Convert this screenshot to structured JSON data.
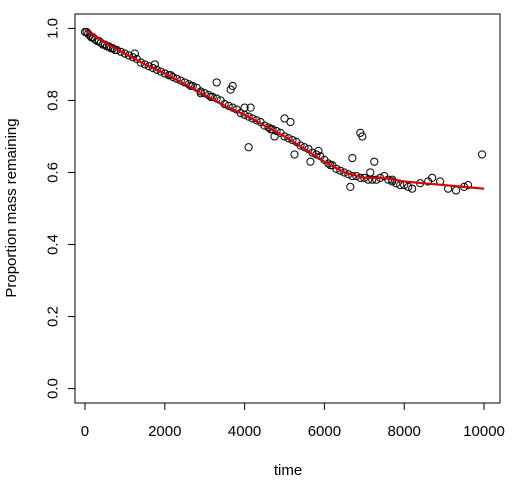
{
  "chart_data": {
    "type": "scatter",
    "title": "",
    "xlabel": "time",
    "ylabel": "Proportion mass remaining",
    "xlim": [
      -250,
      10400
    ],
    "ylim": [
      -0.04,
      1.04
    ],
    "x_ticks": [
      0,
      2000,
      4000,
      6000,
      8000,
      10000
    ],
    "y_ticks": [
      0.0,
      0.2,
      0.4,
      0.6,
      0.8,
      1.0
    ],
    "x_tick_labels": [
      "0",
      "2000",
      "4000",
      "6000",
      "8000",
      "10000"
    ],
    "y_tick_labels": [
      "0.0",
      "0.2",
      "0.4",
      "0.6",
      "0.8",
      "1.0"
    ],
    "grid": false,
    "point_color": "#000000",
    "line_color": "#dd0000",
    "series": [
      {
        "kind": "points",
        "x": [
          0,
          40,
          80,
          120,
          160,
          200,
          250,
          300,
          350,
          400,
          450,
          500,
          550,
          600,
          650,
          700,
          750,
          800,
          900,
          1000,
          1100,
          1200,
          1300,
          1400,
          1500,
          1600,
          1700,
          1800,
          1900,
          2000,
          2100,
          2200,
          2300,
          2400,
          2500,
          2600,
          2700,
          2800,
          2900,
          3000,
          3100,
          3200,
          3300,
          3400,
          3500,
          3600,
          3700,
          3800,
          3900,
          4000,
          4100,
          4200,
          4300,
          4400,
          4500,
          4600,
          4700,
          4800,
          4900,
          5000,
          5100,
          5200,
          5300,
          5400,
          5500,
          5600,
          5700,
          5800,
          5900,
          6000,
          6100,
          6200,
          6300,
          6400,
          6500,
          6600,
          6700,
          6800,
          6900,
          7000,
          7100,
          7200,
          7300,
          7400,
          7500,
          7600,
          7700,
          7800,
          7900,
          8000,
          8100,
          8200,
          8400,
          8600,
          8700,
          8900,
          9100,
          9300,
          9500,
          9600,
          9950,
          1250,
          1750,
          2150,
          2650,
          3150,
          3650,
          4150,
          4650,
          5150,
          5650,
          6150,
          6650,
          6950,
          7150,
          7700,
          3700,
          4100,
          5250,
          6900,
          5000,
          4000,
          3300,
          2900,
          6700,
          7250,
          5850,
          4750
        ],
        "y": [
          0.99,
          0.99,
          0.985,
          0.98,
          0.975,
          0.975,
          0.97,
          0.965,
          0.965,
          0.96,
          0.955,
          0.955,
          0.95,
          0.95,
          0.945,
          0.945,
          0.94,
          0.94,
          0.935,
          0.93,
          0.925,
          0.92,
          0.915,
          0.905,
          0.9,
          0.895,
          0.89,
          0.885,
          0.88,
          0.875,
          0.87,
          0.865,
          0.86,
          0.855,
          0.85,
          0.845,
          0.84,
          0.835,
          0.825,
          0.82,
          0.815,
          0.81,
          0.805,
          0.8,
          0.79,
          0.785,
          0.78,
          0.775,
          0.765,
          0.76,
          0.755,
          0.75,
          0.745,
          0.74,
          0.73,
          0.725,
          0.72,
          0.715,
          0.71,
          0.7,
          0.695,
          0.69,
          0.685,
          0.675,
          0.67,
          0.665,
          0.655,
          0.65,
          0.645,
          0.635,
          0.625,
          0.62,
          0.61,
          0.605,
          0.6,
          0.595,
          0.59,
          0.59,
          0.585,
          0.585,
          0.58,
          0.58,
          0.58,
          0.585,
          0.59,
          0.58,
          0.575,
          0.57,
          0.565,
          0.565,
          0.56,
          0.555,
          0.57,
          0.575,
          0.585,
          0.575,
          0.555,
          0.55,
          0.56,
          0.565,
          0.65,
          0.93,
          0.9,
          0.87,
          0.84,
          0.81,
          0.83,
          0.78,
          0.72,
          0.74,
          0.63,
          0.62,
          0.56,
          0.7,
          0.6,
          0.58,
          0.84,
          0.67,
          0.65,
          0.71,
          0.75,
          0.78,
          0.85,
          0.82,
          0.64,
          0.63,
          0.66,
          0.7
        ]
      },
      {
        "kind": "line",
        "x": [
          0,
          500,
          1000,
          1500,
          2000,
          2500,
          3000,
          3500,
          4000,
          4500,
          5000,
          5500,
          6000,
          6500,
          7000,
          7500,
          8000,
          8500,
          9000,
          9500,
          10000
        ],
        "y": [
          0.995,
          0.96,
          0.93,
          0.9,
          0.875,
          0.845,
          0.815,
          0.785,
          0.76,
          0.73,
          0.7,
          0.665,
          0.63,
          0.6,
          0.585,
          0.585,
          0.575,
          0.57,
          0.565,
          0.56,
          0.555
        ]
      }
    ]
  }
}
